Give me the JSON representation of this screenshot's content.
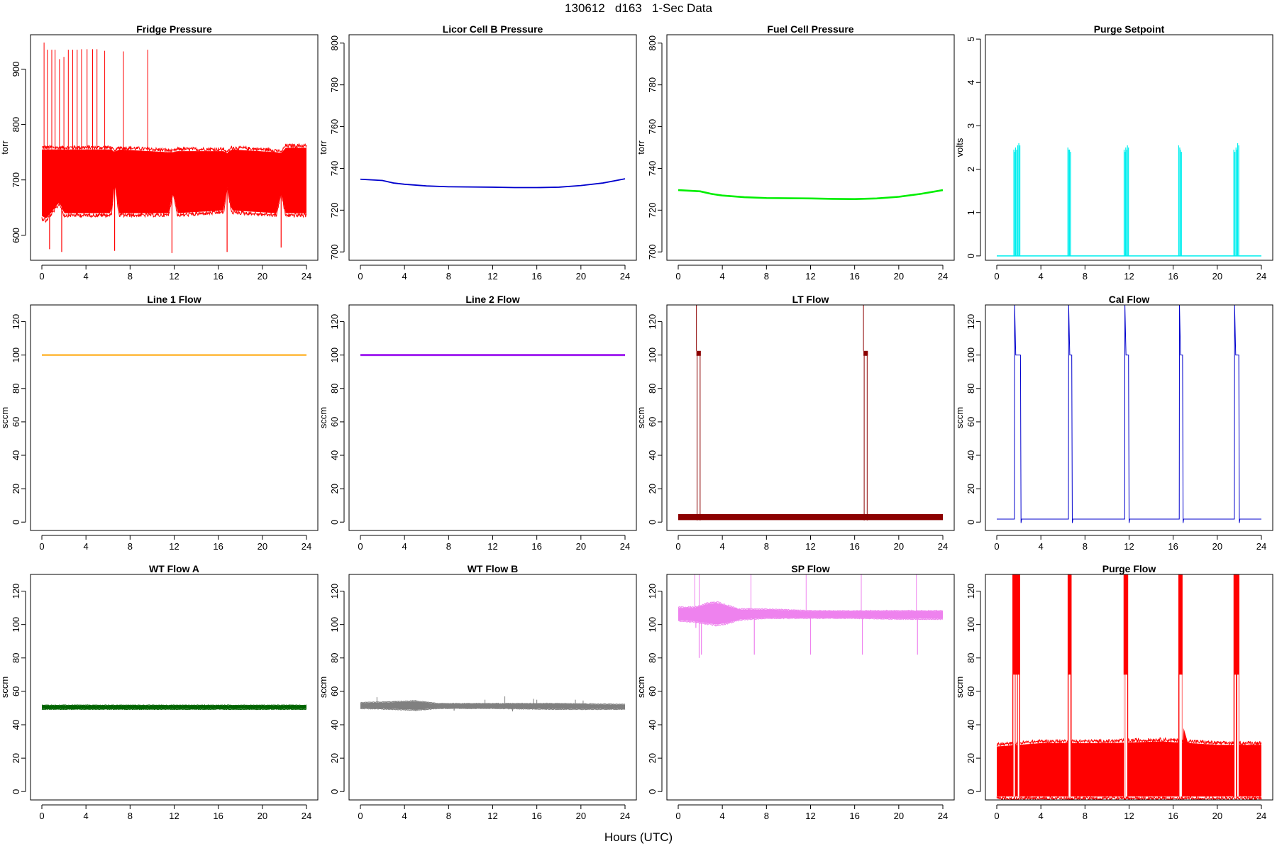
{
  "page": {
    "title": "130612   d163   1-Sec Data",
    "x_caption": "Hours (UTC)"
  },
  "chart_data": [
    {
      "type": "line",
      "title": "Fridge Pressure",
      "ylabel": "torr",
      "color": "#ff0000",
      "ylim": [
        555,
        962
      ],
      "yticks": [
        600,
        700,
        800,
        900
      ],
      "xlim": [
        0,
        24
      ],
      "xticks": [
        0,
        4,
        8,
        12,
        16,
        20,
        24
      ],
      "pattern": "band",
      "band": [
        [
          0,
          635,
          755
        ],
        [
          0.4,
          630,
          755
        ],
        [
          1.6,
          660,
          755
        ],
        [
          2.0,
          640,
          755
        ],
        [
          6.3,
          640,
          755
        ],
        [
          6.6,
          700,
          750
        ],
        [
          7.0,
          640,
          755
        ],
        [
          11.5,
          640,
          750
        ],
        [
          11.9,
          680,
          750
        ],
        [
          12.3,
          640,
          752
        ],
        [
          16.5,
          645,
          752
        ],
        [
          16.8,
          690,
          748
        ],
        [
          17.2,
          645,
          755
        ],
        [
          21.3,
          640,
          750
        ],
        [
          21.7,
          680,
          748
        ],
        [
          22.1,
          640,
          758
        ],
        [
          24,
          640,
          758
        ]
      ],
      "dips": [
        [
          0.7,
          575
        ],
        [
          1.8,
          570
        ],
        [
          6.6,
          572
        ],
        [
          11.8,
          568
        ],
        [
          16.8,
          570
        ],
        [
          21.7,
          578
        ]
      ],
      "spikes": [
        [
          0.2,
          948
        ],
        [
          0.5,
          935
        ],
        [
          0.9,
          935
        ],
        [
          1.2,
          935
        ],
        [
          1.6,
          918
        ],
        [
          2.0,
          922
        ],
        [
          2.4,
          935
        ],
        [
          2.8,
          935
        ],
        [
          3.2,
          935
        ],
        [
          3.6,
          936
        ],
        [
          4.1,
          936
        ],
        [
          4.6,
          936
        ],
        [
          5.0,
          936
        ],
        [
          5.7,
          933
        ],
        [
          7.4,
          932
        ],
        [
          9.6,
          935
        ]
      ]
    },
    {
      "type": "line",
      "title": "Licor Cell B Pressure",
      "ylabel": "torr",
      "color": "#0000cd",
      "ylim": [
        696,
        804
      ],
      "yticks": [
        700,
        720,
        740,
        760,
        780,
        800
      ],
      "xlim": [
        0,
        24
      ],
      "xticks": [
        0,
        4,
        8,
        12,
        16,
        20,
        24
      ],
      "pattern": "line",
      "width": 1.8,
      "points": [
        [
          0,
          734.8
        ],
        [
          2,
          734.2
        ],
        [
          3,
          733.0
        ],
        [
          4,
          732.4
        ],
        [
          6,
          731.6
        ],
        [
          8,
          731.2
        ],
        [
          12,
          731.0
        ],
        [
          14,
          730.8
        ],
        [
          16,
          730.8
        ],
        [
          18,
          731.0
        ],
        [
          20,
          731.8
        ],
        [
          22,
          733.0
        ],
        [
          24,
          735.0
        ]
      ]
    },
    {
      "type": "line",
      "title": "Fuel Cell Pressure",
      "ylabel": "torr",
      "color": "#00ee00",
      "ylim": [
        696,
        804
      ],
      "yticks": [
        700,
        720,
        740,
        760,
        780,
        800
      ],
      "xlim": [
        0,
        24
      ],
      "xticks": [
        0,
        4,
        8,
        12,
        16,
        20,
        24
      ],
      "pattern": "line",
      "width": 2.6,
      "points": [
        [
          0,
          729.6
        ],
        [
          2,
          729.0
        ],
        [
          3,
          727.8
        ],
        [
          4,
          727.0
        ],
        [
          6,
          726.2
        ],
        [
          8,
          725.8
        ],
        [
          12,
          725.6
        ],
        [
          14,
          725.4
        ],
        [
          16,
          725.3
        ],
        [
          18,
          725.6
        ],
        [
          20,
          726.4
        ],
        [
          22,
          727.8
        ],
        [
          24,
          729.6
        ]
      ]
    },
    {
      "type": "line",
      "title": "Purge Setpoint",
      "ylabel": "volts",
      "color": "#00eeee",
      "ylim": [
        -0.1,
        5.1
      ],
      "yticks": [
        0,
        1,
        2,
        3,
        4,
        5
      ],
      "xlim": [
        0,
        24
      ],
      "xticks": [
        0,
        4,
        8,
        12,
        16,
        20,
        24
      ],
      "pattern": "baseline_pulses",
      "baseline": 0,
      "pulses": [
        [
          1.55,
          2.45
        ],
        [
          1.7,
          2.5
        ],
        [
          1.9,
          2.55
        ],
        [
          2.0,
          2.6
        ],
        [
          6.45,
          2.5
        ],
        [
          6.6,
          2.45
        ],
        [
          11.55,
          2.45
        ],
        [
          11.7,
          2.5
        ],
        [
          11.85,
          2.55
        ],
        [
          16.5,
          2.55
        ],
        [
          16.65,
          2.45
        ],
        [
          21.5,
          2.45
        ],
        [
          21.7,
          2.5
        ],
        [
          21.85,
          2.6
        ]
      ]
    },
    {
      "type": "line",
      "title": "Line 1 Flow",
      "ylabel": "sccm",
      "color": "#ffa500",
      "ylim": [
        -5,
        130
      ],
      "yticks": [
        0,
        20,
        40,
        60,
        80,
        100,
        120
      ],
      "xlim": [
        0,
        24
      ],
      "xticks": [
        0,
        4,
        8,
        12,
        16,
        20,
        24
      ],
      "pattern": "line",
      "width": 2,
      "points": [
        [
          0,
          100
        ],
        [
          24,
          100
        ]
      ]
    },
    {
      "type": "line",
      "title": "Line 2 Flow",
      "ylabel": "sccm",
      "color": "#a020f0",
      "ylim": [
        -5,
        130
      ],
      "yticks": [
        0,
        20,
        40,
        60,
        80,
        100,
        120
      ],
      "xlim": [
        0,
        24
      ],
      "xticks": [
        0,
        4,
        8,
        12,
        16,
        20,
        24
      ],
      "pattern": "line",
      "width": 3,
      "points": [
        [
          0,
          100
        ],
        [
          24,
          100
        ]
      ]
    },
    {
      "type": "line",
      "title": "LT Flow",
      "ylabel": "sccm",
      "color": "#8b0000",
      "ylim": [
        -5,
        130
      ],
      "yticks": [
        0,
        20,
        40,
        60,
        80,
        100,
        120
      ],
      "xlim": [
        0,
        24
      ],
      "xticks": [
        0,
        4,
        8,
        12,
        16,
        20,
        24
      ],
      "pattern": "lt",
      "base_band": [
        1.2,
        4.8
      ],
      "plateaus": [
        [
          1.65,
          2.05
        ],
        [
          16.8,
          17.2
        ]
      ],
      "plateau_level": [
        99.5,
        102.5
      ],
      "spikes": [
        [
          1.65,
          130
        ],
        [
          16.8,
          130
        ]
      ]
    },
    {
      "type": "line",
      "title": "Cal Flow",
      "ylabel": "sccm",
      "color": "#0000cd",
      "ylim": [
        -5,
        130
      ],
      "yticks": [
        0,
        20,
        40,
        60,
        80,
        100,
        120
      ],
      "xlim": [
        0,
        24
      ],
      "xticks": [
        0,
        4,
        8,
        12,
        16,
        20,
        24
      ],
      "pattern": "pulses_line",
      "baseline": 1.8,
      "pulses": [
        [
          1.6,
          2.2
        ],
        [
          6.5,
          6.85
        ],
        [
          11.6,
          12.0
        ],
        [
          16.55,
          16.9
        ],
        [
          21.55,
          22.0
        ]
      ],
      "plateau": 100
    },
    {
      "type": "line",
      "title": "WT Flow A",
      "ylabel": "sccm",
      "color": "#006400",
      "ylim": [
        -5,
        130
      ],
      "yticks": [
        0,
        20,
        40,
        60,
        80,
        100,
        120
      ],
      "xlim": [
        0,
        24
      ],
      "xticks": [
        0,
        4,
        8,
        12,
        16,
        20,
        24
      ],
      "pattern": "band",
      "band": [
        [
          0,
          49.5,
          51.5
        ],
        [
          24,
          49.5,
          51.5
        ]
      ],
      "dips": [],
      "spikes": []
    },
    {
      "type": "line",
      "title": "WT Flow B",
      "ylabel": "sccm",
      "color": "#808080",
      "ylim": [
        -5,
        130
      ],
      "yticks": [
        0,
        20,
        40,
        60,
        80,
        100,
        120
      ],
      "xlim": [
        0,
        24
      ],
      "xticks": [
        0,
        4,
        8,
        12,
        16,
        20,
        24
      ],
      "pattern": "band",
      "band": [
        [
          0,
          50,
          53
        ],
        [
          3,
          49.5,
          53.5
        ],
        [
          5,
          49,
          54
        ],
        [
          7,
          50,
          52.5
        ],
        [
          12,
          50,
          52.5
        ],
        [
          18,
          49.5,
          52.5
        ],
        [
          24,
          49.5,
          52
        ]
      ],
      "dips": [
        [
          13.8,
          48
        ],
        [
          8.5,
          48.5
        ]
      ],
      "spikes": [
        [
          1.5,
          56.5
        ],
        [
          13.1,
          57
        ],
        [
          11.3,
          55
        ],
        [
          15.7,
          55.5
        ],
        [
          16.0,
          55
        ],
        [
          19.5,
          55
        ],
        [
          20.2,
          54.5
        ]
      ]
    },
    {
      "type": "line",
      "title": "SP Flow",
      "ylabel": "sccm",
      "color": "#ee82ee",
      "ylim": [
        -5,
        130
      ],
      "yticks": [
        0,
        20,
        40,
        60,
        80,
        100,
        120
      ],
      "xlim": [
        0,
        24
      ],
      "xticks": [
        0,
        4,
        8,
        12,
        16,
        20,
        24
      ],
      "pattern": "band",
      "band": [
        [
          0,
          102.5,
          110
        ],
        [
          1.5,
          102,
          110
        ],
        [
          2.5,
          101,
          112
        ],
        [
          3.5,
          100,
          113
        ],
        [
          4.5,
          101,
          111
        ],
        [
          5.5,
          103,
          109
        ],
        [
          8,
          104,
          109
        ],
        [
          12,
          104,
          108
        ],
        [
          16,
          104,
          108
        ],
        [
          20,
          103.5,
          108
        ],
        [
          24,
          103.5,
          108
        ]
      ],
      "dips": [
        [
          1.6,
          98
        ],
        [
          1.9,
          80
        ],
        [
          2.1,
          82
        ],
        [
          6.9,
          82
        ],
        [
          12.0,
          82
        ],
        [
          16.7,
          82
        ],
        [
          21.7,
          82
        ]
      ],
      "spikes": [
        [
          1.5,
          130
        ],
        [
          1.9,
          130
        ],
        [
          6.6,
          130
        ],
        [
          11.6,
          130
        ],
        [
          16.6,
          130
        ],
        [
          21.6,
          130
        ]
      ]
    },
    {
      "type": "line",
      "title": "Purge Flow",
      "ylabel": "sccm",
      "color": "#ff0000",
      "ylim": [
        -5,
        130
      ],
      "yticks": [
        0,
        20,
        40,
        60,
        80,
        100,
        120
      ],
      "xlim": [
        0,
        24
      ],
      "xticks": [
        0,
        4,
        8,
        12,
        16,
        20,
        24
      ],
      "pattern": "purge",
      "band": [
        [
          0,
          -3,
          27
        ],
        [
          4,
          -3,
          29
        ],
        [
          10,
          -3,
          29
        ],
        [
          15,
          -3,
          30
        ],
        [
          20,
          -3,
          28
        ],
        [
          24,
          -3,
          28
        ]
      ],
      "bursts": [
        [
          1.45,
          2.1
        ],
        [
          6.45,
          6.75
        ],
        [
          11.5,
          11.9
        ],
        [
          16.5,
          16.85
        ],
        [
          21.5,
          22.0
        ]
      ],
      "bump": [
        16.85,
        17.3,
        38
      ]
    }
  ]
}
